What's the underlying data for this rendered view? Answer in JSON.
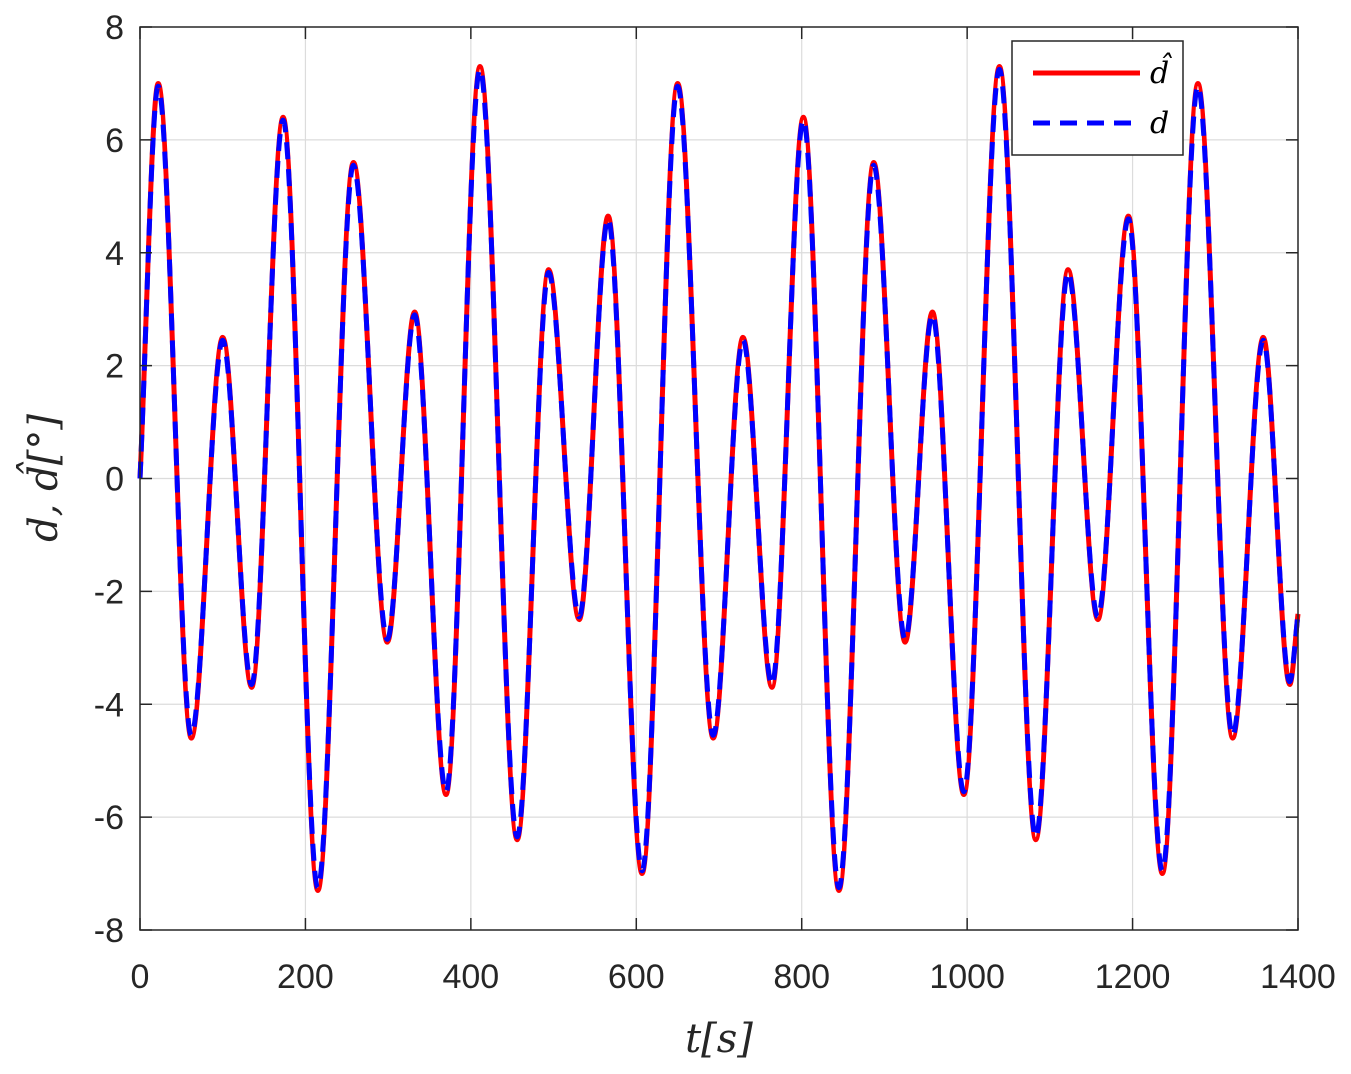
{
  "chart_data": {
    "type": "line",
    "xlabel": "t[s]",
    "ylabel": "d, d̂[°]",
    "xlim": [
      0,
      1400
    ],
    "ylim": [
      -8,
      8
    ],
    "x_ticks": [
      0,
      200,
      400,
      600,
      800,
      1000,
      1200,
      1400
    ],
    "y_ticks": [
      -8,
      -6,
      -4,
      -2,
      0,
      2,
      4,
      6,
      8
    ],
    "x_tick_labels": [
      "0",
      "200",
      "400",
      "600",
      "800",
      "1000",
      "1200",
      "1400"
    ],
    "y_tick_labels": [
      "-8",
      "-6",
      "-4",
      "-2",
      "0",
      "2",
      "4",
      "6",
      "8"
    ],
    "grid": true,
    "legend_position": "top-right",
    "series": [
      {
        "name": "d̂",
        "color": "#ff0000",
        "style": "solid",
        "x": [
          0,
          22,
          62,
          100,
          135,
          173,
          215,
          258,
          299,
          332,
          370,
          411,
          456,
          494,
          531,
          566,
          607,
          650,
          693,
          729,
          764,
          802,
          845,
          887,
          925,
          958,
          996,
          1039,
          1083,
          1122,
          1158,
          1195,
          1236,
          1279,
          1321,
          1358,
          1390,
          1400
        ],
        "y": [
          0,
          7.0,
          -4.6,
          2.5,
          -3.7,
          6.4,
          -7.3,
          5.6,
          -2.9,
          2.95,
          -5.6,
          7.3,
          -6.4,
          3.7,
          -2.5,
          4.65,
          -7.0,
          7.0,
          -4.6,
          2.5,
          -3.7,
          6.4,
          -7.3,
          5.6,
          -2.9,
          2.95,
          -5.6,
          7.3,
          -6.4,
          3.7,
          -2.5,
          4.65,
          -7.0,
          7.0,
          -4.6,
          2.5,
          -3.65,
          -2.4
        ]
      },
      {
        "name": "d",
        "color": "#0000ff",
        "style": "dashed",
        "x": [
          0,
          22,
          62,
          100,
          135,
          173,
          215,
          258,
          299,
          332,
          370,
          411,
          456,
          494,
          531,
          566,
          607,
          650,
          693,
          729,
          764,
          802,
          845,
          887,
          925,
          958,
          996,
          1039,
          1083,
          1122,
          1158,
          1195,
          1236,
          1279,
          1321,
          1358,
          1390,
          1400
        ],
        "y": [
          0,
          6.95,
          -4.55,
          2.45,
          -3.65,
          6.35,
          -7.25,
          5.55,
          -2.85,
          2.9,
          -5.55,
          7.25,
          -6.35,
          3.65,
          -2.45,
          4.6,
          -6.95,
          6.95,
          -4.55,
          2.45,
          -3.65,
          6.35,
          -7.25,
          5.55,
          -2.85,
          2.9,
          -5.55,
          7.25,
          -6.35,
          3.65,
          -2.45,
          4.6,
          -6.95,
          6.95,
          -4.55,
          2.45,
          -3.6,
          -2.4
        ]
      }
    ]
  }
}
